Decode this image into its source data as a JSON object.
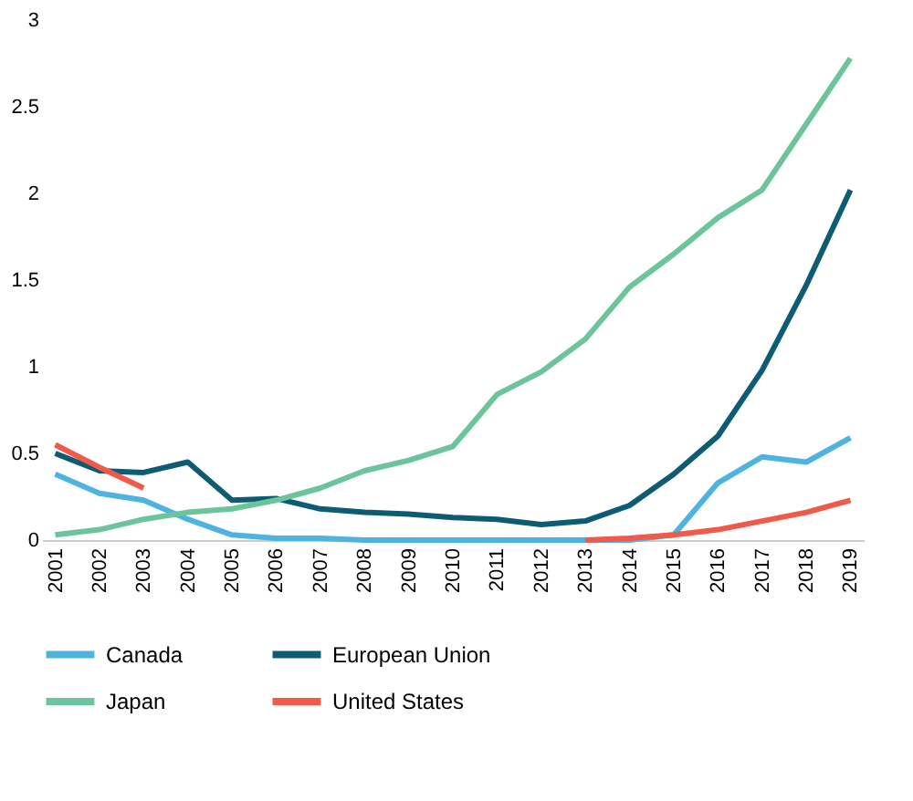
{
  "chart_data": {
    "type": "line",
    "categories": [
      "2001",
      "2002",
      "2003",
      "2004",
      "2005",
      "2006",
      "2007",
      "2008",
      "2009",
      "2010",
      "2011",
      "2012",
      "2013",
      "2014",
      "2015",
      "2016",
      "2017",
      "2018",
      "2019"
    ],
    "series": [
      {
        "name": "Canada",
        "color": "#4fb3e0",
        "values": [
          0.38,
          0.27,
          0.23,
          0.12,
          0.03,
          0.01,
          0.01,
          0.0,
          0.0,
          0.0,
          0.0,
          0.0,
          0.0,
          0.0,
          0.03,
          0.33,
          0.48,
          0.45,
          0.59
        ]
      },
      {
        "name": "European Union",
        "color": "#0e5c73",
        "values": [
          0.5,
          0.4,
          0.39,
          0.45,
          0.23,
          0.24,
          0.18,
          0.16,
          0.15,
          0.13,
          0.12,
          0.09,
          0.11,
          0.2,
          0.38,
          0.6,
          0.98,
          1.47,
          2.02
        ]
      },
      {
        "name": "Japan",
        "color": "#6cc49a",
        "values": [
          0.03,
          0.06,
          0.12,
          0.16,
          0.18,
          0.23,
          0.3,
          0.4,
          0.46,
          0.54,
          0.84,
          0.97,
          1.16,
          1.46,
          1.65,
          1.86,
          2.02,
          2.4,
          2.78
        ]
      },
      {
        "name": "United States",
        "color": "#ef5a4a",
        "values": [
          0.55,
          0.42,
          0.3,
          null,
          null,
          null,
          null,
          null,
          null,
          null,
          null,
          null,
          0.0,
          0.01,
          0.03,
          0.06,
          0.11,
          0.16,
          0.23
        ]
      }
    ],
    "ylim": [
      0,
      3
    ],
    "yticks": [
      0,
      0.5,
      1,
      1.5,
      2,
      2.5,
      3
    ],
    "grid": false,
    "legend": "bottom",
    "marker": "none",
    "line_style": "solid"
  }
}
